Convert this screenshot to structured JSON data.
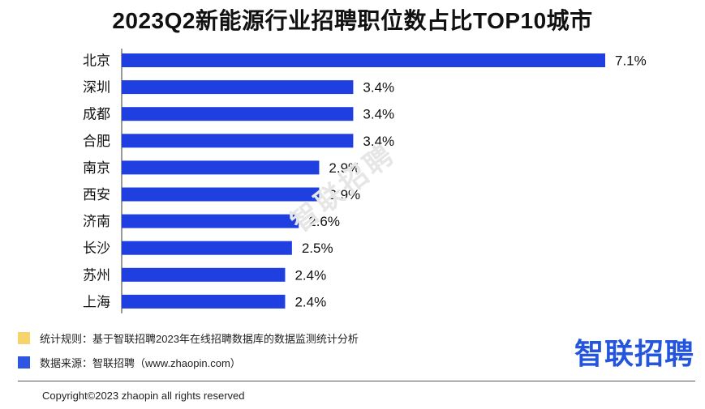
{
  "chart_data": {
    "type": "bar",
    "orientation": "horizontal",
    "title": "2023Q2新能源行业招聘职位数占比TOP10城市",
    "categories": [
      "北京",
      "深圳",
      "成都",
      "合肥",
      "南京",
      "西安",
      "济南",
      "长沙",
      "苏州",
      "上海"
    ],
    "values": [
      7.1,
      3.4,
      3.4,
      3.4,
      2.9,
      2.9,
      2.6,
      2.5,
      2.4,
      2.4
    ],
    "value_labels": [
      "7.1%",
      "3.4%",
      "3.4%",
      "3.4%",
      "2.9%",
      "2.9%",
      "2.6%",
      "2.5%",
      "2.4%",
      "2.4%"
    ],
    "bar_color": "#1f3fe0",
    "grid": false
  },
  "watermark": "智联招聘",
  "notes": [
    {
      "text": "统计规则：基于智联招聘2023年在线招聘数据库的数据监测统计分析",
      "color": "#f7d36b"
    },
    {
      "text": "数据来源：智联招聘（www.zhaopin.com）",
      "color": "#2f56e0"
    }
  ],
  "logo_text": "智联招聘",
  "copyright": "Copyright©2023 zhaopin all rights reserved"
}
